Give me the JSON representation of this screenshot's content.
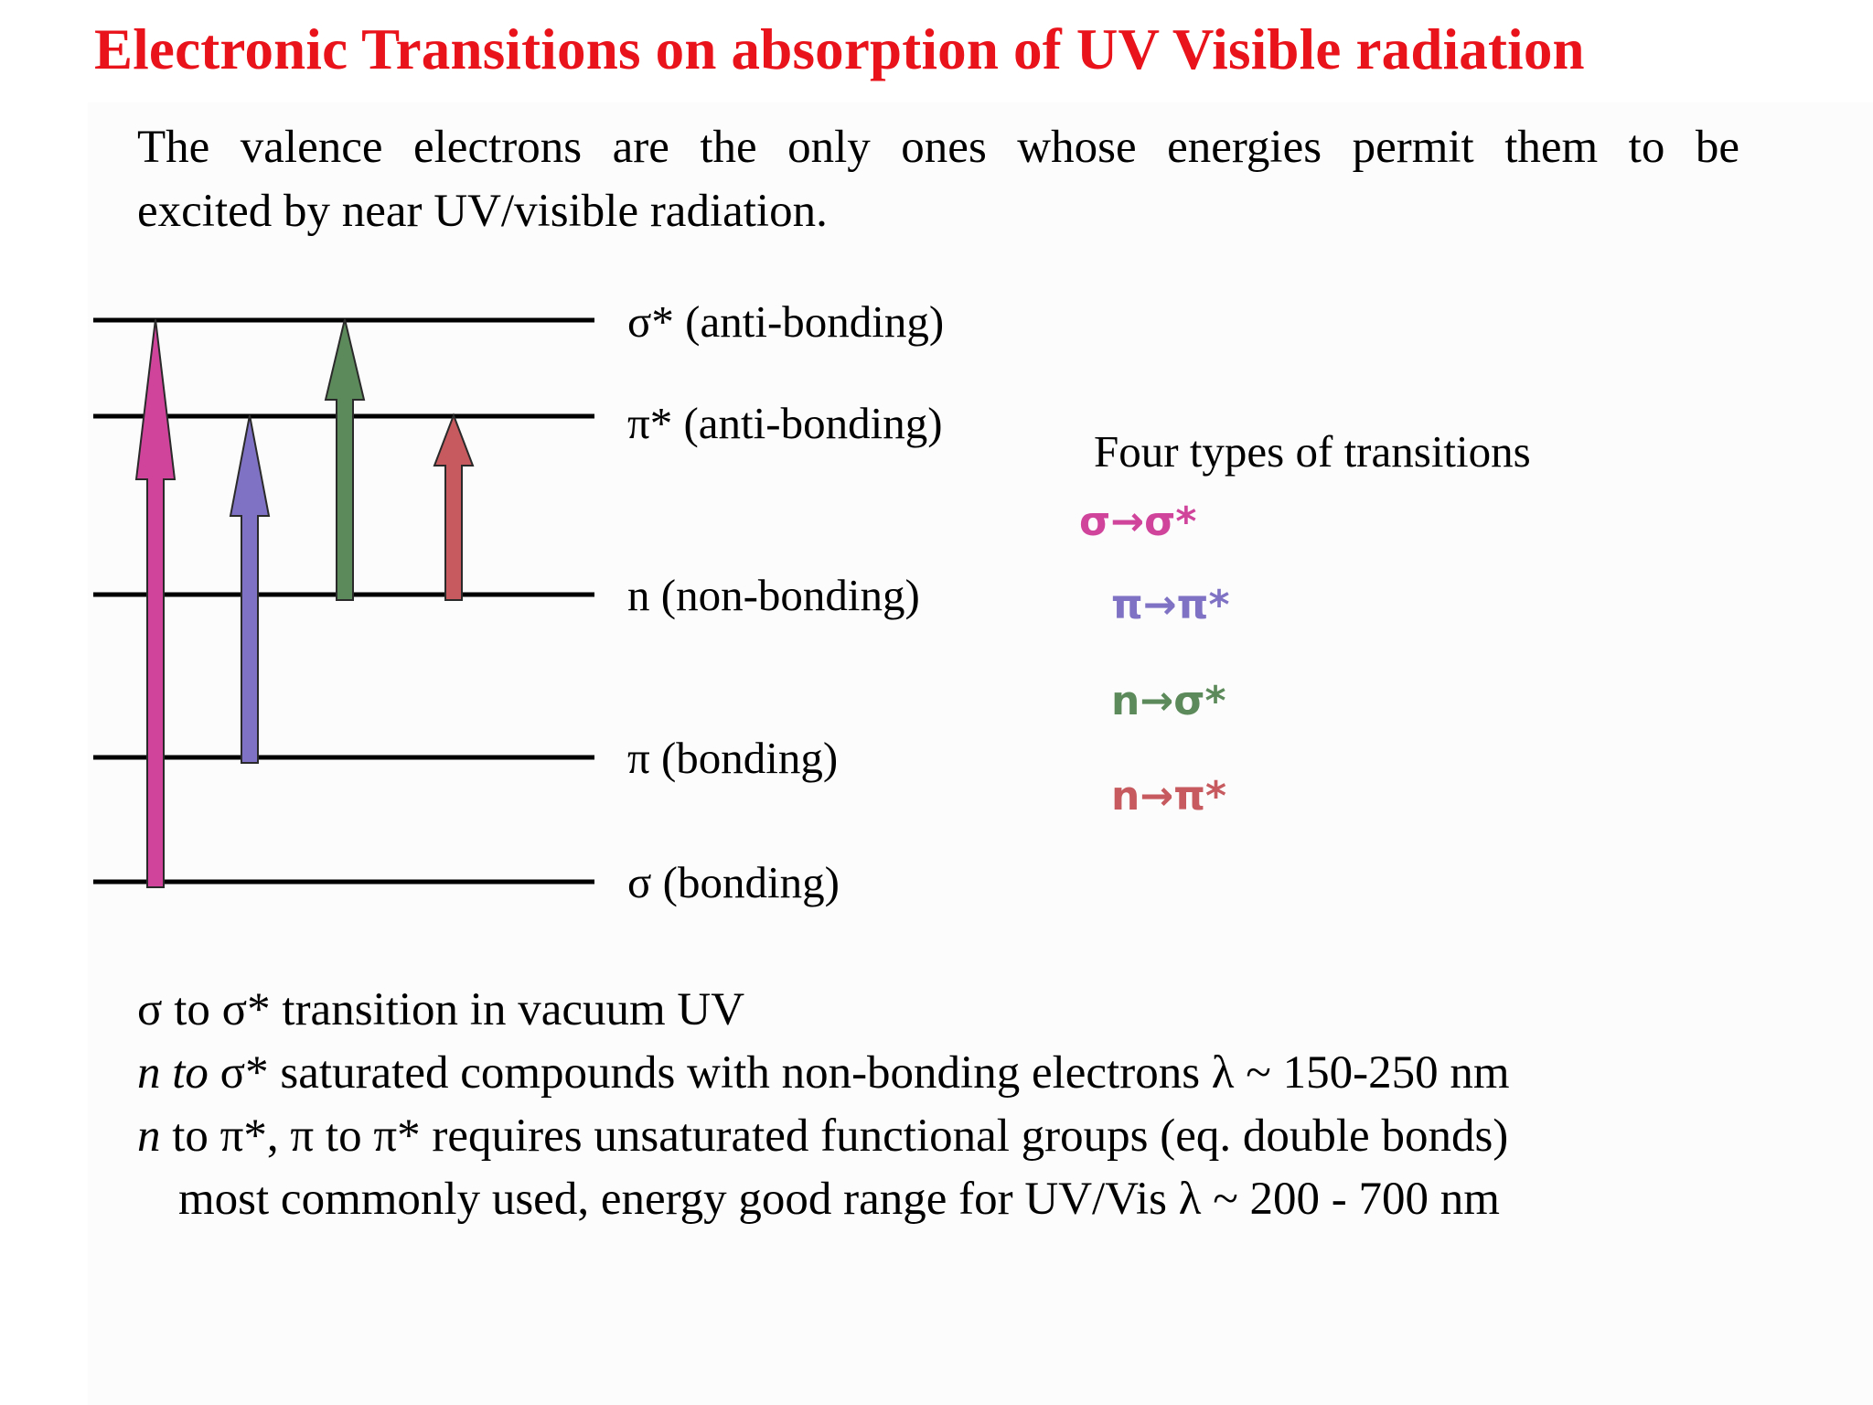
{
  "slide": {
    "title": "Electronic Transitions on absorption of  UV Visible radiation",
    "intro_line1": "The valence electrons are the only ones whose energies permit them to be",
    "intro_line2": "excited by near UV/visible radiation."
  },
  "levels": [
    {
      "id": "sigma_star",
      "label": "σ* (anti-bonding)"
    },
    {
      "id": "pi_star",
      "label": "π* (anti-bonding)"
    },
    {
      "id": "n",
      "label": "n (non-bonding)"
    },
    {
      "id": "pi",
      "label": "π (bonding)"
    },
    {
      "id": "sigma",
      "label": "σ (bonding)"
    }
  ],
  "transitions_heading": "Four types of transitions",
  "transitions": [
    {
      "label": "σ→σ*",
      "from": "sigma",
      "to": "sigma_star",
      "color": "#d0449c"
    },
    {
      "label": "π→π*",
      "from": "pi",
      "to": "pi_star",
      "color": "#7f72c4"
    },
    {
      "label": "n→σ*",
      "from": "n",
      "to": "sigma_star",
      "color": "#5d8a5a"
    },
    {
      "label": "n→π*",
      "from": "n",
      "to": "pi_star",
      "color": "#c65a5e"
    }
  ],
  "notes": {
    "line1": "σ to σ* transition in vacuum UV",
    "line2_italic": "n  to",
    "line2_rest": " σ*  saturated compounds with non-bonding electrons λ ~ 150-250 nm",
    "line3_italic": "n",
    "line3_rest": " to π*, π to π* requires unsaturated functional groups (eq. double bonds)",
    "line4": "most commonly used, energy good range for UV/Vis λ ~ 200 - 700 nm"
  },
  "colors": {
    "title": "#e8131b",
    "level_line": "#000000"
  }
}
